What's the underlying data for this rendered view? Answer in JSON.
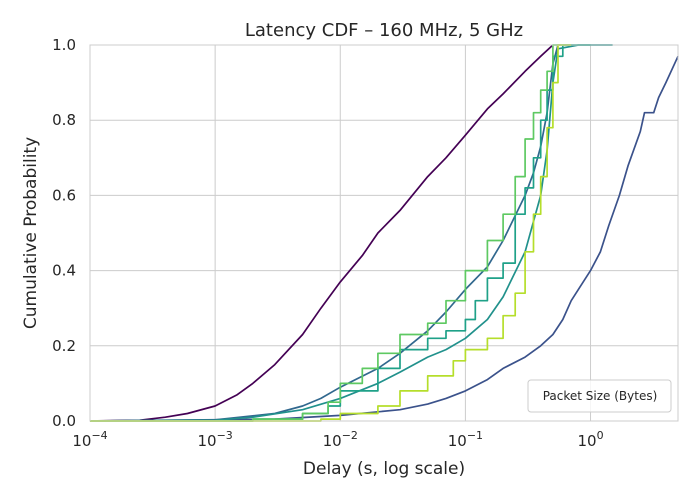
{
  "chart_data": {
    "type": "line",
    "title": "Latency CDF – 160 MHz, 5 GHz",
    "xlabel": "Delay (s, log scale)",
    "ylabel": "Cumulative Probability",
    "xscale": "log",
    "xlim": [
      0.0001,
      5
    ],
    "ylim": [
      0,
      1
    ],
    "grid": true,
    "x_ticks": [
      0.0001,
      0.001,
      0.01,
      0.1,
      1
    ],
    "x_tick_labels": [
      {
        "base": "10",
        "exp": "−4"
      },
      {
        "base": "10",
        "exp": "−3"
      },
      {
        "base": "10",
        "exp": "−2"
      },
      {
        "base": "10",
        "exp": "−1"
      },
      {
        "base": "10",
        "exp": "0"
      }
    ],
    "y_ticks": [
      0.0,
      0.2,
      0.4,
      0.6,
      0.8,
      1.0
    ],
    "y_tick_labels": [
      "0.0",
      "0.2",
      "0.4",
      "0.6",
      "0.8",
      "1.0"
    ],
    "legend": {
      "title": "Packet Size (Bytes)",
      "placement": "lower-right"
    },
    "series": [
      {
        "color": "#440154",
        "step": false,
        "points": [
          [
            0.0001,
            0
          ],
          [
            0.00025,
            0.002
          ],
          [
            0.0004,
            0.01
          ],
          [
            0.0006,
            0.02
          ],
          [
            0.001,
            0.04
          ],
          [
            0.0015,
            0.07
          ],
          [
            0.002,
            0.1
          ],
          [
            0.003,
            0.15
          ],
          [
            0.005,
            0.23
          ],
          [
            0.007,
            0.3
          ],
          [
            0.01,
            0.37
          ],
          [
            0.015,
            0.44
          ],
          [
            0.02,
            0.5
          ],
          [
            0.03,
            0.56
          ],
          [
            0.05,
            0.65
          ],
          [
            0.07,
            0.7
          ],
          [
            0.1,
            0.76
          ],
          [
            0.15,
            0.83
          ],
          [
            0.2,
            0.87
          ],
          [
            0.3,
            0.93
          ],
          [
            0.4,
            0.97
          ],
          [
            0.5,
            1.0
          ]
        ]
      },
      {
        "color": "#3b528b",
        "step": false,
        "points": [
          [
            0.0001,
            0
          ],
          [
            0.003,
            0.005
          ],
          [
            0.01,
            0.015
          ],
          [
            0.03,
            0.03
          ],
          [
            0.05,
            0.045
          ],
          [
            0.07,
            0.06
          ],
          [
            0.1,
            0.08
          ],
          [
            0.15,
            0.11
          ],
          [
            0.2,
            0.14
          ],
          [
            0.3,
            0.17
          ],
          [
            0.4,
            0.2
          ],
          [
            0.5,
            0.23
          ],
          [
            0.6,
            0.27
          ],
          [
            0.7,
            0.32
          ],
          [
            0.8,
            0.35
          ],
          [
            1.0,
            0.4
          ],
          [
            1.2,
            0.45
          ],
          [
            1.4,
            0.52
          ],
          [
            1.7,
            0.6
          ],
          [
            2.0,
            0.68
          ],
          [
            2.5,
            0.77
          ],
          [
            2.7,
            0.82
          ],
          [
            3.2,
            0.82
          ],
          [
            3.5,
            0.86
          ],
          [
            4.0,
            0.9
          ],
          [
            5.0,
            0.97
          ]
        ]
      },
      {
        "color": "#31688e",
        "step": false,
        "points": [
          [
            0.0001,
            0
          ],
          [
            0.001,
            0.003
          ],
          [
            0.003,
            0.02
          ],
          [
            0.005,
            0.04
          ],
          [
            0.007,
            0.06
          ],
          [
            0.01,
            0.09
          ],
          [
            0.02,
            0.14
          ],
          [
            0.03,
            0.18
          ],
          [
            0.05,
            0.24
          ],
          [
            0.07,
            0.29
          ],
          [
            0.1,
            0.35
          ],
          [
            0.15,
            0.41
          ],
          [
            0.2,
            0.48
          ],
          [
            0.3,
            0.6
          ],
          [
            0.35,
            0.66
          ],
          [
            0.4,
            0.73
          ],
          [
            0.45,
            0.82
          ],
          [
            0.5,
            0.95
          ],
          [
            0.55,
            1.0
          ],
          [
            0.7,
            1.0
          ]
        ]
      },
      {
        "color": "#21918c",
        "step": false,
        "points": [
          [
            0.0001,
            0
          ],
          [
            0.001,
            0.002
          ],
          [
            0.002,
            0.01
          ],
          [
            0.005,
            0.03
          ],
          [
            0.01,
            0.06
          ],
          [
            0.02,
            0.1
          ],
          [
            0.03,
            0.13
          ],
          [
            0.05,
            0.17
          ],
          [
            0.07,
            0.19
          ],
          [
            0.1,
            0.22
          ],
          [
            0.15,
            0.27
          ],
          [
            0.2,
            0.33
          ],
          [
            0.3,
            0.45
          ],
          [
            0.4,
            0.6
          ],
          [
            0.45,
            0.72
          ],
          [
            0.5,
            0.9
          ],
          [
            0.55,
            0.99
          ],
          [
            0.8,
            1.0
          ],
          [
            1.5,
            1.0
          ]
        ]
      },
      {
        "color": "#1fa188",
        "step": true,
        "points": [
          [
            0.0001,
            0
          ],
          [
            0.002,
            0.005
          ],
          [
            0.005,
            0.02
          ],
          [
            0.008,
            0.04
          ],
          [
            0.01,
            0.08
          ],
          [
            0.02,
            0.14
          ],
          [
            0.03,
            0.19
          ],
          [
            0.05,
            0.22
          ],
          [
            0.07,
            0.24
          ],
          [
            0.1,
            0.27
          ],
          [
            0.12,
            0.32
          ],
          [
            0.15,
            0.38
          ],
          [
            0.2,
            0.42
          ],
          [
            0.25,
            0.55
          ],
          [
            0.3,
            0.62
          ],
          [
            0.35,
            0.7
          ],
          [
            0.4,
            0.8
          ],
          [
            0.45,
            0.88
          ],
          [
            0.5,
            0.97
          ],
          [
            0.6,
            1.0
          ],
          [
            1.0,
            1.0
          ]
        ]
      },
      {
        "color": "#5ec962",
        "step": true,
        "points": [
          [
            0.0001,
            0
          ],
          [
            0.002,
            0.005
          ],
          [
            0.005,
            0.02
          ],
          [
            0.008,
            0.05
          ],
          [
            0.01,
            0.1
          ],
          [
            0.015,
            0.14
          ],
          [
            0.02,
            0.18
          ],
          [
            0.03,
            0.23
          ],
          [
            0.05,
            0.26
          ],
          [
            0.07,
            0.32
          ],
          [
            0.1,
            0.4
          ],
          [
            0.15,
            0.48
          ],
          [
            0.2,
            0.55
          ],
          [
            0.25,
            0.65
          ],
          [
            0.3,
            0.75
          ],
          [
            0.35,
            0.82
          ],
          [
            0.4,
            0.88
          ],
          [
            0.45,
            0.93
          ],
          [
            0.5,
            1.0
          ],
          [
            0.6,
            1.0
          ]
        ]
      },
      {
        "color": "#b5de2b",
        "step": true,
        "points": [
          [
            0.0001,
            0
          ],
          [
            0.007,
            0.005
          ],
          [
            0.01,
            0.02
          ],
          [
            0.02,
            0.04
          ],
          [
            0.03,
            0.08
          ],
          [
            0.05,
            0.12
          ],
          [
            0.08,
            0.16
          ],
          [
            0.1,
            0.19
          ],
          [
            0.15,
            0.22
          ],
          [
            0.2,
            0.28
          ],
          [
            0.25,
            0.34
          ],
          [
            0.3,
            0.45
          ],
          [
            0.35,
            0.55
          ],
          [
            0.4,
            0.65
          ],
          [
            0.45,
            0.78
          ],
          [
            0.5,
            0.9
          ],
          [
            0.55,
            1.0
          ],
          [
            0.7,
            1.0
          ]
        ]
      }
    ]
  }
}
